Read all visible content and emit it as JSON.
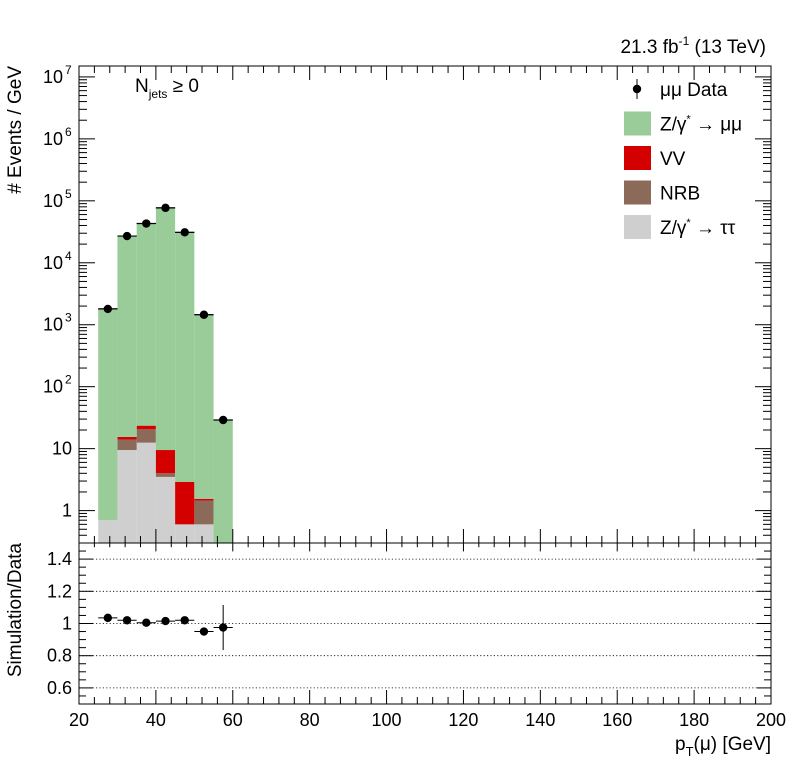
{
  "chart_data": {
    "type": "bar",
    "stacked": true,
    "luminosity_label": "21.3 fb⁻¹ (13 TeV)",
    "category_label": "N_jets ≥ 0",
    "xlabel": "p_T(μ) [GeV]",
    "xlim": [
      20,
      200
    ],
    "x_ticks": [
      "20",
      "40",
      "60",
      "80",
      "100",
      "120",
      "140",
      "160",
      "180",
      "200"
    ],
    "bin_edges": [
      25,
      30,
      35,
      40,
      45,
      50,
      55,
      60
    ],
    "top_panel": {
      "ylabel": "# Events / GeV",
      "yscale": "log",
      "ylim": [
        0.3,
        15000000
      ],
      "y_ticks": [
        {
          "value": 1,
          "label": "1"
        },
        {
          "value": 10,
          "label": "10"
        },
        {
          "value": 100,
          "label": "10",
          "exp": "2"
        },
        {
          "value": 1000,
          "label": "10",
          "exp": "3"
        },
        {
          "value": 10000,
          "label": "10",
          "exp": "4"
        },
        {
          "value": 100000,
          "label": "10",
          "exp": "5"
        },
        {
          "value": 1000000,
          "label": "10",
          "exp": "6"
        },
        {
          "value": 10000000,
          "label": "10",
          "exp": "7"
        }
      ],
      "series": [
        {
          "key": "ztautau",
          "name": "Z/γ* → ττ",
          "color": "#cfcfcf",
          "values": [
            0.7,
            9.5,
            12.5,
            3.5,
            0.6,
            0.6,
            0
          ]
        },
        {
          "key": "nrb",
          "name": "NRB",
          "color": "#8c6a59",
          "values": [
            0,
            4.5,
            8.0,
            0.5,
            0.0,
            0.85,
            0
          ]
        },
        {
          "key": "vv",
          "name": "VV",
          "color": "#d40000",
          "values": [
            0,
            1.5,
            3.0,
            5.5,
            2.3,
            0.1,
            0
          ]
        },
        {
          "key": "zmumu",
          "name": "Z/γ* → μμ",
          "color": "#99cc99",
          "values": [
            1800,
            27000,
            43000,
            77000,
            31000,
            1450,
            29
          ]
        }
      ],
      "data_series": {
        "name": "μμ Data",
        "x": [
          27.5,
          32.5,
          37.5,
          42.5,
          47.5,
          52.5,
          57.5
        ],
        "y": [
          1800,
          27000,
          43000,
          77000,
          31000,
          1450,
          29
        ]
      }
    },
    "ratio_panel": {
      "ylabel": "Simulation/Data",
      "ylim": [
        0.5,
        1.5
      ],
      "y_ticks": [
        "0.6",
        "0.8",
        "1",
        "1.2",
        "1.4"
      ],
      "grid_lines": [
        0.6,
        0.8,
        1.0,
        1.2,
        1.4
      ],
      "points": [
        {
          "x": 27.5,
          "y": 1.035,
          "err": 0.01
        },
        {
          "x": 32.5,
          "y": 1.02,
          "err": 0.005
        },
        {
          "x": 37.5,
          "y": 1.005,
          "err": 0.005
        },
        {
          "x": 42.5,
          "y": 1.015,
          "err": 0.005
        },
        {
          "x": 47.5,
          "y": 1.02,
          "err": 0.005
        },
        {
          "x": 52.5,
          "y": 0.95,
          "err": 0.02
        },
        {
          "x": 57.5,
          "y": 0.975,
          "err": 0.14
        }
      ]
    },
    "legend_position": "top-right"
  }
}
